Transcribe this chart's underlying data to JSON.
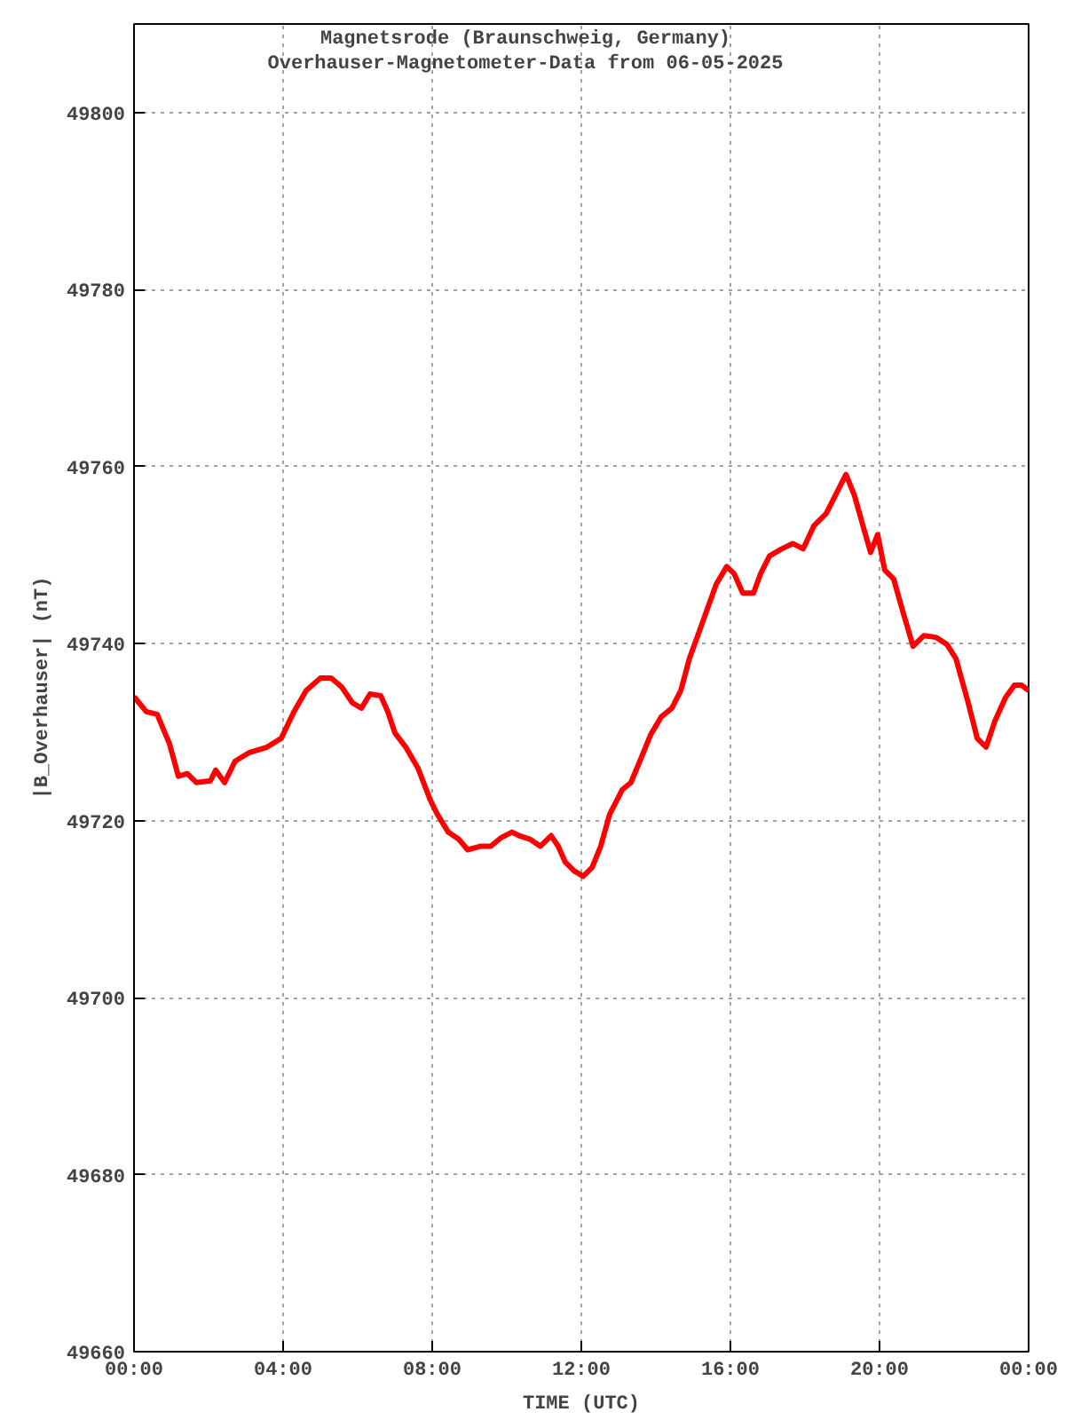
{
  "chart_data": {
    "type": "line",
    "title": "Magnetsrode (Braunschweig, Germany)",
    "subtitle": "Overhauser-Magnetometer-Data from 06-05-2025",
    "xlabel": "TIME (UTC)",
    "ylabel": "|B_Overhauser| (nT)",
    "x": [
      0,
      0.33,
      0.62,
      0.95,
      1.19,
      1.43,
      1.67,
      2.05,
      2.19,
      2.43,
      2.71,
      3.1,
      3.57,
      3.95,
      4.29,
      4.62,
      5.0,
      5.29,
      5.57,
      5.86,
      6.1,
      6.33,
      6.62,
      6.81,
      7.0,
      7.29,
      7.62,
      7.95,
      8.14,
      8.43,
      8.71,
      8.95,
      9.29,
      9.57,
      9.86,
      10.14,
      10.33,
      10.62,
      10.9,
      11.19,
      11.38,
      11.57,
      11.81,
      12.05,
      12.29,
      12.52,
      12.76,
      13.1,
      13.33,
      13.57,
      13.86,
      14.14,
      14.43,
      14.67,
      14.9,
      15.14,
      15.38,
      15.62,
      15.9,
      16.1,
      16.33,
      16.62,
      16.81,
      17.05,
      17.38,
      17.67,
      17.95,
      18.24,
      18.57,
      18.81,
      19.1,
      19.33,
      19.57,
      19.76,
      19.95,
      20.14,
      20.38,
      20.62,
      20.9,
      21.19,
      21.52,
      21.81,
      22.05,
      22.38,
      22.62,
      22.86,
      23.1,
      23.38,
      23.62,
      23.81,
      24
    ],
    "series": [
      {
        "color": "#ff0000",
        "values": [
          49734,
          49732.3,
          49732,
          49728.7,
          49725,
          49725.3,
          49724.3,
          49724.5,
          49725.7,
          49724.3,
          49726.7,
          49727.7,
          49728.3,
          49729.3,
          49732.3,
          49734.7,
          49736.1,
          49736.1,
          49735.1,
          49733.3,
          49732.7,
          49734.3,
          49734.1,
          49732.3,
          49729.9,
          49728.3,
          49725.9,
          49722.3,
          49720.7,
          49718.7,
          49717.9,
          49716.7,
          49717.1,
          49717.1,
          49718.1,
          49718.7,
          49718.3,
          49717.9,
          49717.1,
          49718.3,
          49717.1,
          49715.3,
          49714.3,
          49713.7,
          49714.7,
          49717.1,
          49720.7,
          49723.5,
          49724.3,
          49726.7,
          49729.7,
          49731.7,
          49732.7,
          49734.7,
          49738.3,
          49741.1,
          49743.9,
          49746.7,
          49748.7,
          49747.9,
          49745.7,
          49745.7,
          49747.9,
          49749.9,
          49750.7,
          49751.3,
          49750.7,
          49753.3,
          49754.7,
          49756.7,
          49759.1,
          49756.7,
          49753.1,
          49750.3,
          49752.3,
          49748.3,
          49747.3,
          49743.7,
          49739.7,
          49740.9,
          49740.7,
          49739.9,
          49738.3,
          49733.3,
          49729.3,
          49728.3,
          49731.3,
          49733.9,
          49735.3,
          49735.3,
          49734.7
        ]
      }
    ],
    "xlim": [
      0,
      24
    ],
    "xticks": [
      {
        "value": 0,
        "label": "00:00"
      },
      {
        "value": 4,
        "label": "04:00"
      },
      {
        "value": 8,
        "label": "08:00"
      },
      {
        "value": 12,
        "label": "12:00"
      },
      {
        "value": 16,
        "label": "16:00"
      },
      {
        "value": 20,
        "label": "20:00"
      },
      {
        "value": 24,
        "label": "00:00"
      }
    ],
    "ylim": [
      49660,
      49810
    ],
    "yticks": [
      49660,
      49680,
      49700,
      49720,
      49740,
      49760,
      49780,
      49800
    ],
    "grid": true,
    "line_style": "solid"
  }
}
